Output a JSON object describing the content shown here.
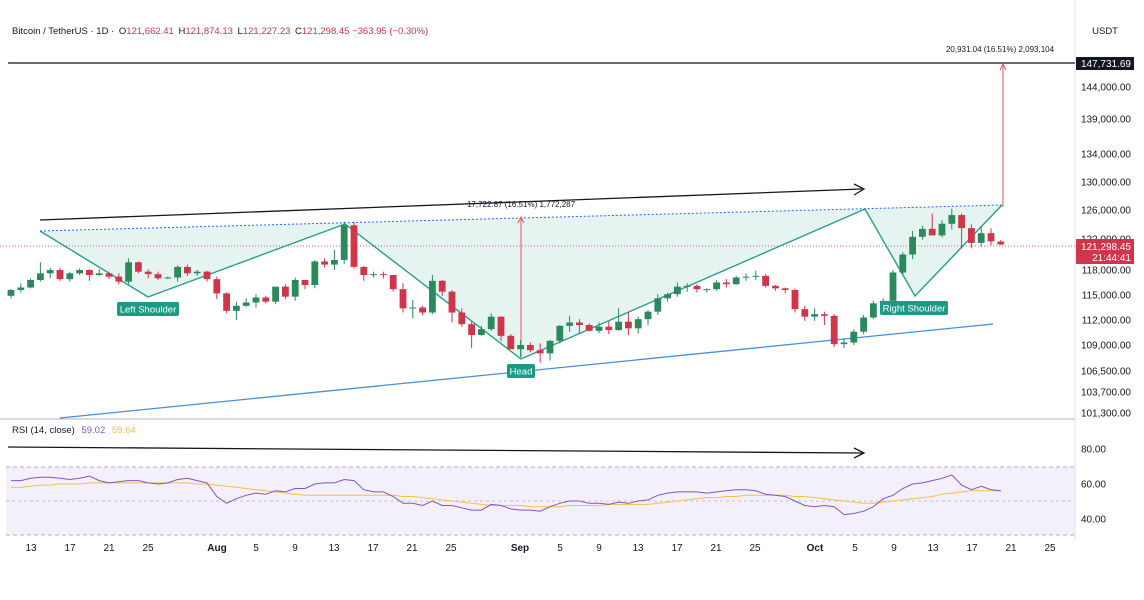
{
  "header": {
    "symbol": "Bitcoin / TetherUS · 1D ·",
    "o_label": "O",
    "o_value": "121,662.41",
    "h_label": "H",
    "h_value": "121,874.13",
    "l_label": "L",
    "l_value": "121,227.23",
    "c_label": "C",
    "c_value": "121,298.45",
    "change": "−363.95 (−0.30%)"
  },
  "currency": "USDT",
  "colors": {
    "up": "#2b8a5c",
    "down": "#d1354a",
    "neckline": "#2962ff",
    "pattern": "#26a08a",
    "pattern_fill": "#e0f2ee",
    "support": "#4a8fd6",
    "rsi": "#7e57c2",
    "rsi_ma": "#f5c242",
    "label_bg": "#1b9a86"
  },
  "chart_data": {
    "type": "candlestick",
    "price_axis": {
      "ticks": [
        "144,000.00",
        "139,000.00",
        "134,000.00",
        "130,000.00",
        "126,000.00",
        "122,000.00",
        "118,000.00",
        "115,000.00",
        "112,000.00",
        "109,000.00",
        "106,500.00",
        "103,700.00",
        "101,300.00"
      ],
      "target_label": "147,731.69",
      "current_price": "121,298.45",
      "countdown": "21:44:41"
    },
    "time_axis": [
      "13",
      "17",
      "21",
      "25",
      "Aug",
      "5",
      "9",
      "13",
      "17",
      "21",
      "25",
      "Sep",
      "5",
      "9",
      "13",
      "17",
      "21",
      "25",
      "Oct",
      "5",
      "9",
      "13",
      "17",
      "21",
      "25"
    ],
    "candles": [
      [
        114900,
        115700,
        114600,
        115600
      ],
      [
        115600,
        116400,
        115300,
        115900
      ],
      [
        115900,
        117000,
        115800,
        116800
      ],
      [
        116800,
        119000,
        116600,
        117600
      ],
      [
        117600,
        118300,
        117000,
        118000
      ],
      [
        118000,
        118300,
        116700,
        116900
      ],
      [
        116900,
        117800,
        116600,
        117600
      ],
      [
        117600,
        118200,
        117400,
        118000
      ],
      [
        118000,
        118100,
        116700,
        117400
      ],
      [
        117400,
        118100,
        117300,
        117600
      ],
      [
        117600,
        117800,
        116900,
        117200
      ],
      [
        117200,
        117600,
        116300,
        116600
      ],
      [
        116600,
        119500,
        116300,
        119000
      ],
      [
        119000,
        119100,
        117600,
        117800
      ],
      [
        117800,
        118100,
        117000,
        117500
      ],
      [
        117500,
        117800,
        116800,
        117000
      ],
      [
        117000,
        117200,
        116900,
        117100
      ],
      [
        117100,
        118600,
        116600,
        118400
      ],
      [
        118400,
        118700,
        117300,
        117600
      ],
      [
        117600,
        118000,
        117300,
        117800
      ],
      [
        117800,
        117900,
        116600,
        116900
      ],
      [
        116900,
        117200,
        114500,
        115200
      ],
      [
        115200,
        115300,
        112800,
        113100
      ],
      [
        113100,
        114200,
        112000,
        113700
      ],
      [
        113700,
        114600,
        113600,
        114100
      ],
      [
        114100,
        115100,
        113500,
        114700
      ],
      [
        114700,
        114900,
        114000,
        114200
      ],
      [
        114200,
        116000,
        113900,
        116000
      ],
      [
        116000,
        116300,
        114500,
        114800
      ],
      [
        114800,
        117100,
        114300,
        116800
      ],
      [
        116800,
        116800,
        115700,
        116200
      ],
      [
        116200,
        119300,
        115800,
        119100
      ],
      [
        119100,
        119500,
        118300,
        118700
      ],
      [
        118700,
        120600,
        118000,
        119300
      ],
      [
        119300,
        124400,
        118800,
        123900
      ],
      [
        123900,
        124400,
        118200,
        118400
      ],
      [
        118400,
        118500,
        116700,
        117400
      ],
      [
        117400,
        117800,
        117100,
        117500
      ],
      [
        117500,
        117800,
        117000,
        117400
      ],
      [
        117400,
        117400,
        115400,
        115700
      ],
      [
        115700,
        116400,
        112900,
        113400
      ],
      [
        113400,
        114400,
        112200,
        113500
      ],
      [
        113500,
        113700,
        112600,
        112900
      ],
      [
        112900,
        117400,
        112700,
        116700
      ],
      [
        116700,
        116800,
        114900,
        115400
      ],
      [
        115400,
        115600,
        111700,
        112900
      ],
      [
        112900,
        113400,
        111200,
        111500
      ],
      [
        111500,
        111800,
        108700,
        110200
      ],
      [
        110200,
        111300,
        110100,
        110900
      ],
      [
        110900,
        112800,
        110700,
        112400
      ],
      [
        112400,
        112400,
        109500,
        110100
      ],
      [
        110100,
        110300,
        108700,
        108600
      ],
      [
        108600,
        109600,
        107800,
        109000
      ],
      [
        109000,
        109300,
        108300,
        108500
      ],
      [
        108500,
        109200,
        107300,
        108200
      ],
      [
        108200,
        109600,
        107500,
        109500
      ],
      [
        109500,
        111400,
        109200,
        111300
      ],
      [
        111300,
        112500,
        110600,
        111700
      ],
      [
        111700,
        112100,
        110400,
        111400
      ],
      [
        111400,
        111600,
        110600,
        110700
      ],
      [
        110700,
        111700,
        110400,
        111200
      ],
      [
        111200,
        111800,
        110300,
        110800
      ],
      [
        110800,
        113400,
        110700,
        111800
      ],
      [
        111800,
        112900,
        110200,
        111000
      ],
      [
        111000,
        112400,
        110400,
        112100
      ],
      [
        112100,
        113200,
        111400,
        113000
      ],
      [
        113000,
        115100,
        112600,
        114600
      ],
      [
        114600,
        115300,
        114200,
        115100
      ],
      [
        115100,
        116500,
        114800,
        116000
      ],
      [
        116000,
        116400,
        115400,
        116100
      ],
      [
        116100,
        116300,
        115300,
        115700
      ],
      [
        115700,
        115800,
        115300,
        115700
      ],
      [
        115700,
        116800,
        115500,
        116500
      ],
      [
        116500,
        116900,
        115900,
        116300
      ],
      [
        116300,
        117300,
        116200,
        117100
      ],
      [
        117100,
        117600,
        116700,
        117200
      ],
      [
        117200,
        117900,
        116800,
        117300
      ],
      [
        117300,
        117500,
        115900,
        116100
      ],
      [
        116100,
        116200,
        115500,
        115800
      ],
      [
        115800,
        115900,
        115200,
        115600
      ],
      [
        115600,
        115800,
        112900,
        113300
      ],
      [
        113300,
        113700,
        111900,
        112400
      ],
      [
        112400,
        113400,
        111900,
        112700
      ],
      [
        112700,
        113000,
        111400,
        112500
      ],
      [
        112500,
        112700,
        108800,
        109100
      ],
      [
        109100,
        109800,
        108700,
        109300
      ],
      [
        109300,
        110900,
        109000,
        110600
      ],
      [
        110600,
        112600,
        110300,
        112300
      ],
      [
        112300,
        114300,
        112100,
        114000
      ],
      [
        114000,
        114600,
        113800,
        114300
      ],
      [
        114300,
        118000,
        114200,
        117700
      ],
      [
        117700,
        120300,
        117400,
        120000
      ],
      [
        120000,
        123100,
        119400,
        122300
      ],
      [
        122300,
        123800,
        121900,
        123400
      ],
      [
        123400,
        125500,
        122500,
        122500
      ],
      [
        122500,
        124600,
        122200,
        124100
      ],
      [
        124100,
        126200,
        123300,
        125300
      ],
      [
        125300,
        125500,
        120800,
        123500
      ],
      [
        123500,
        124000,
        120800,
        121500
      ],
      [
        121500,
        123800,
        121000,
        122800
      ],
      [
        122800,
        123500,
        121200,
        121700
      ],
      [
        121662,
        121874,
        121227,
        121298
      ]
    ],
    "rsi": {
      "label": "RSI (14, close)",
      "value": "59.02",
      "ma_value": "59.64",
      "levels": [
        "80.00",
        "60.00",
        "40.00"
      ],
      "values": [
        68,
        68,
        70,
        71,
        71,
        70,
        69,
        70,
        72,
        68,
        66,
        67,
        68,
        68,
        66,
        65,
        66,
        69,
        70,
        68,
        66,
        54,
        48,
        52,
        55,
        57,
        56,
        59,
        58,
        61,
        61,
        65,
        66,
        66,
        69,
        68,
        60,
        58,
        58,
        54,
        48,
        48,
        46,
        50,
        46,
        46,
        44,
        42,
        42,
        47,
        46,
        43,
        42,
        42,
        41,
        45,
        48,
        50,
        50,
        48,
        48,
        47,
        49,
        48,
        50,
        51,
        55,
        57,
        58,
        58,
        58,
        57,
        58,
        59,
        60,
        60,
        59,
        56,
        55,
        54,
        50,
        46,
        45,
        46,
        45,
        38,
        39,
        41,
        45,
        52,
        55,
        61,
        65,
        66,
        68,
        70,
        73,
        64,
        60,
        63,
        60,
        59
      ],
      "ma": [
        62,
        62,
        63,
        64,
        64,
        65,
        65,
        65,
        66,
        66,
        66,
        66,
        66,
        66,
        66,
        66,
        66,
        66,
        66,
        65,
        65,
        64,
        63,
        62,
        61,
        60,
        59,
        58,
        57,
        56,
        55,
        55,
        55,
        55,
        55,
        55,
        55,
        55,
        55,
        55,
        54,
        54,
        53,
        52,
        51,
        50,
        49,
        48,
        47,
        46,
        46,
        46,
        46,
        45,
        45,
        45,
        45,
        46,
        46,
        46,
        46,
        47,
        47,
        47,
        47,
        47,
        48,
        49,
        50,
        51,
        52,
        53,
        53,
        54,
        54,
        55,
        55,
        55,
        55,
        55,
        54,
        54,
        53,
        52,
        51,
        50,
        49,
        48,
        48,
        49,
        50,
        51,
        52,
        53,
        54,
        56,
        57,
        58,
        59,
        59,
        59,
        59
      ]
    },
    "measures": {
      "top": "20,931.04 (16.51%) 2,093,104",
      "middle": "17,722.87 (16.51%) 1,772,287"
    },
    "labels": {
      "left_shoulder": "Left Shoulder",
      "head": "Head",
      "right_shoulder": "Right Shoulder"
    }
  }
}
